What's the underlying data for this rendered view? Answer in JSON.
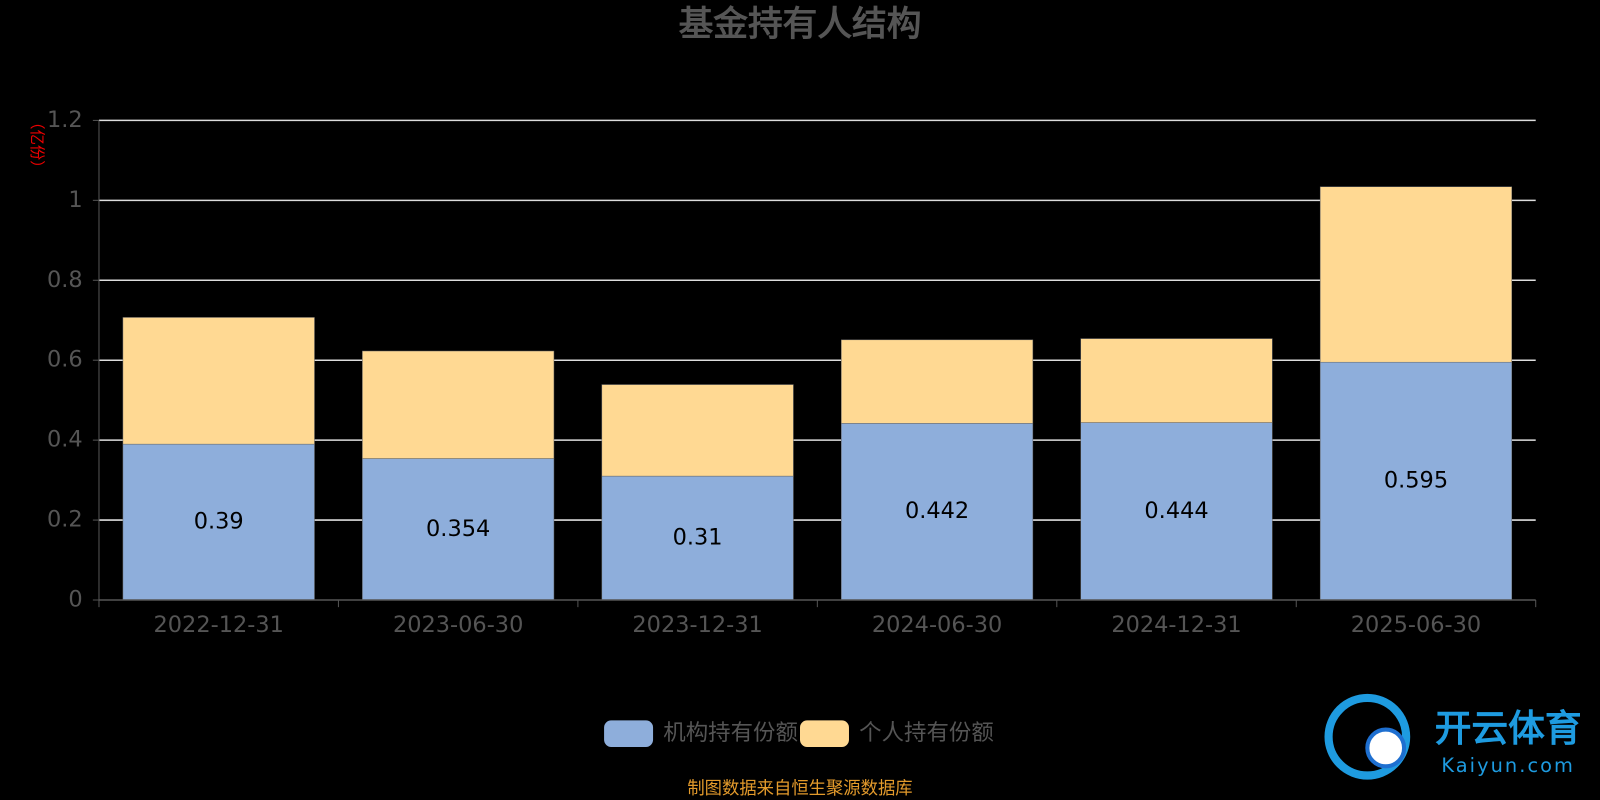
{
  "chart_data": {
    "type": "stacked_bar",
    "title": "基金持有人结构",
    "y_label": "（亿份）",
    "categories": [
      "2022-12-31",
      "2023-06-30",
      "2023-12-31",
      "2024-06-30",
      "2024-12-31",
      "2025-06-30"
    ],
    "series": [
      {
        "name": "机构持有份额",
        "color": "#8eaedb",
        "values": [
          0.39,
          0.354,
          0.31,
          0.442,
          0.444,
          0.595
        ],
        "labels": true
      },
      {
        "name": "个人持有份额",
        "color": "#ffd993",
        "values": [
          0.317,
          0.269,
          0.229,
          0.209,
          0.21,
          0.439
        ],
        "labels": false
      }
    ],
    "ylim": [
      0,
      1.2
    ],
    "yticks": [
      0,
      0.2,
      0.4,
      0.6,
      0.8,
      1,
      1.2
    ],
    "grid": true,
    "legend": "bottom",
    "source": "制图数据来自恒生聚源数据库",
    "watermark": {
      "name": "开云体育",
      "site": "Kaiyun.com"
    }
  }
}
